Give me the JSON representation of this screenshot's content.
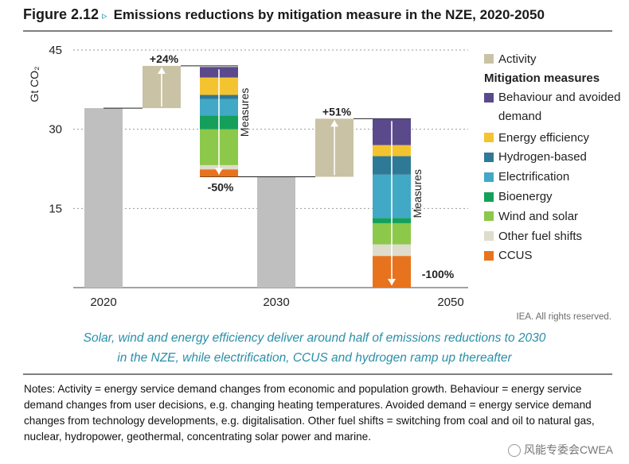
{
  "header": {
    "figure_number": "Figure 2.12",
    "figure_arrow": "▹",
    "title": "Emissions reductions by mitigation measure in the NZE, 2020-2050"
  },
  "chart_data": {
    "type": "waterfall",
    "title": "Emissions reductions by mitigation measure in the NZE, 2020-2050",
    "ylabel": "Gt CO₂",
    "ylim": [
      0,
      45
    ],
    "yticks": [
      15,
      30,
      45
    ],
    "categories": [
      "2020",
      "2030",
      "2050"
    ],
    "totals": [
      {
        "year": "2020",
        "value": 34
      },
      {
        "year": "2030",
        "value": 21
      }
    ],
    "activity_steps": [
      {
        "label": "+24%",
        "from": 34,
        "to": 42
      },
      {
        "label": "+51%",
        "from": 21,
        "to": 32
      }
    ],
    "measure_stacks": [
      {
        "period": "2020-2030",
        "label": "-50%",
        "arrow_label": "Measures",
        "segments": [
          {
            "name": "CCUS",
            "value": 1.4
          },
          {
            "name": "Other fuel shifts",
            "value": 0.8
          },
          {
            "name": "Wind and solar",
            "value": 6.8
          },
          {
            "name": "Bioenergy",
            "value": 2.6
          },
          {
            "name": "Electrification",
            "value": 3.1
          },
          {
            "name": "Hydrogen-based",
            "value": 0.8
          },
          {
            "name": "Energy efficiency",
            "value": 3.3
          },
          {
            "name": "Behaviour and avoided demand",
            "value": 2.0
          }
        ]
      },
      {
        "period": "2030-2050",
        "label": "-100%",
        "arrow_label": "Measures",
        "segments": [
          {
            "name": "CCUS",
            "value": 6.0
          },
          {
            "name": "Other fuel shifts",
            "value": 2.2
          },
          {
            "name": "Wind and solar",
            "value": 4.0
          },
          {
            "name": "Bioenergy",
            "value": 1.0
          },
          {
            "name": "Electrification",
            "value": 8.2
          },
          {
            "name": "Hydrogen-based",
            "value": 3.5
          },
          {
            "name": "Energy efficiency",
            "value": 2.1
          },
          {
            "name": "Behaviour and avoided demand",
            "value": 5.0
          }
        ]
      }
    ],
    "colors": {
      "total": "#bfbfbf",
      "activity": "#c9c2a4",
      "Behaviour and avoided demand": "#5b4a8b",
      "Energy efficiency": "#f4c430",
      "Hydrogen-based": "#2e7a96",
      "Electrification": "#41a9c5",
      "Bioenergy": "#14a05a",
      "Wind and solar": "#8cc84a",
      "Other fuel shifts": "#dedccb",
      "CCUS": "#e8731e"
    }
  },
  "legend": {
    "activity": "Activity",
    "heading": "Mitigation measures",
    "items": [
      {
        "label": "Behaviour and avoided demand",
        "color": "#5b4a8b"
      },
      {
        "label": "Energy efficiency",
        "color": "#f4c430"
      },
      {
        "label": "Hydrogen-based",
        "color": "#2e7a96"
      },
      {
        "label": "Electrification",
        "color": "#41a9c5"
      },
      {
        "label": "Bioenergy",
        "color": "#14a05a"
      },
      {
        "label": "Wind and solar",
        "color": "#8cc84a"
      },
      {
        "label": "Other fuel shifts",
        "color": "#dedccb"
      },
      {
        "label": "CCUS",
        "color": "#e8731e"
      }
    ]
  },
  "rights": "IEA. All rights reserved.",
  "caption": {
    "line1": "Solar, wind and energy efficiency deliver around half of emissions reductions to 2030",
    "line2": "in the NZE, while electrification, CCUS and hydrogen ramp up thereafter"
  },
  "notes": "Notes: Activity = energy service demand changes from economic and population growth. Behaviour = energy service demand changes from user decisions, e.g. changing heating temperatures. Avoided demand = energy service demand changes from technology developments, e.g. digitalisation. Other fuel shifts = switching from coal and oil to natural gas, nuclear, hydropower, geothermal, concentrating solar power and marine.",
  "watermark": "风能专委会CWEA"
}
